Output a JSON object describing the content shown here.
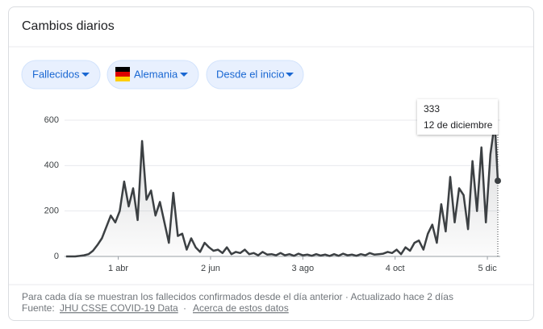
{
  "header": {
    "title": "Cambios diarios"
  },
  "filters": [
    "Fallecidos",
    "Alemania",
    "Desde el inicio"
  ],
  "chart_data": {
    "type": "line",
    "color": "#3c4043",
    "x": [
      57,
      60,
      63,
      66,
      69,
      72,
      75,
      78,
      81,
      84,
      87,
      90,
      93,
      96,
      99,
      102,
      105,
      108,
      111,
      114,
      117,
      120,
      123,
      126,
      129,
      132,
      135,
      138,
      141,
      144,
      147,
      150,
      153,
      156,
      159,
      162,
      165,
      168,
      171,
      174,
      177,
      180,
      183,
      186,
      189,
      192,
      195,
      198,
      201,
      204,
      207,
      210,
      213,
      216,
      219,
      222,
      225,
      228,
      231,
      234,
      237,
      240,
      243,
      246,
      249,
      252,
      255,
      258,
      261,
      264,
      267,
      270,
      273,
      276,
      279,
      282,
      285,
      288,
      291,
      294,
      297,
      300,
      303,
      306,
      309,
      312,
      315,
      318,
      321,
      324,
      327,
      330,
      333,
      336,
      339,
      342,
      345,
      347
    ],
    "values": [
      0,
      0,
      0,
      2,
      5,
      10,
      25,
      50,
      80,
      130,
      180,
      150,
      200,
      330,
      220,
      300,
      160,
      508,
      250,
      290,
      180,
      240,
      150,
      60,
      280,
      90,
      100,
      30,
      80,
      40,
      20,
      60,
      40,
      25,
      30,
      15,
      40,
      10,
      20,
      15,
      30,
      10,
      15,
      5,
      20,
      8,
      10,
      5,
      15,
      5,
      10,
      3,
      12,
      5,
      8,
      3,
      10,
      4,
      8,
      2,
      10,
      3,
      12,
      5,
      8,
      3,
      10,
      5,
      15,
      8,
      10,
      12,
      20,
      15,
      30,
      10,
      40,
      25,
      60,
      70,
      30,
      100,
      140,
      60,
      230,
      110,
      350,
      150,
      300,
      270,
      120,
      420,
      200,
      480,
      150,
      450,
      590,
      333
    ],
    "xlim": [
      57,
      347
    ],
    "xticks": [
      {
        "value": 92,
        "label": "1 abr"
      },
      {
        "value": 154,
        "label": "2 jun"
      },
      {
        "value": 216,
        "label": "3 ago"
      },
      {
        "value": 278,
        "label": "4 oct"
      },
      {
        "value": 340,
        "label": "5 dic"
      }
    ],
    "ylim": [
      0,
      600
    ],
    "yticks": [
      0,
      200,
      400,
      600
    ],
    "grid": true,
    "tooltip": {
      "label": "12 de diciembre"
    }
  },
  "footer": {
    "note": "Para cada día se muestran los fallecidos confirmados desde el día anterior · Actualizado hace 2 días",
    "source_label": "Fuente:",
    "source_link": "JHU CSSE COVID-19 Data",
    "separator": "·",
    "about_link": "Acerca de estos datos"
  }
}
